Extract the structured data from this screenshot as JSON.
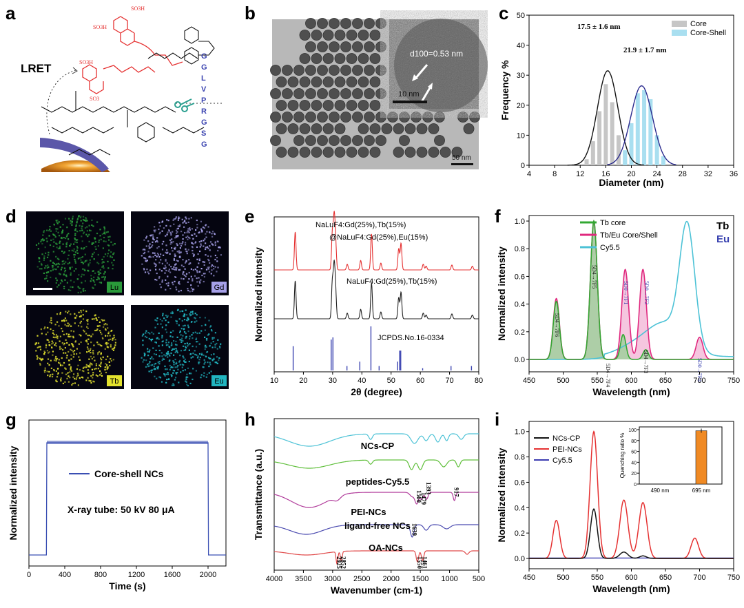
{
  "panels": {
    "a": "a",
    "b": "b",
    "c": "c",
    "d": "d",
    "e": "e",
    "f": "f",
    "g": "g",
    "h": "h",
    "i": "i"
  },
  "panel_a": {
    "lret": "LRET",
    "peptide": [
      "G",
      "G",
      "L",
      "V",
      "P",
      "R",
      "G",
      "S",
      "G"
    ],
    "so3h": "SO3H",
    "so3": "SO3"
  },
  "panel_b": {
    "spacing_label": "d100=0.53 nm",
    "inset_scale": "10 nm",
    "scale": "50 nm"
  },
  "panel_d": {
    "labels": [
      "Lu",
      "Gd",
      "Tb",
      "Eu"
    ],
    "colors": [
      "#2a9a3a",
      "#a6a0e8",
      "#e3e22e",
      "#21b5c0"
    ]
  },
  "panel_e": {
    "labels": [
      "NaLuF4:Gd(25%),Tb(15%)",
      "@NaLuF4:Gd(25%),Eu(15%)",
      "NaLuF4:Gd(25%),Tb(15%)",
      "JCPDS.No.16-0334"
    ]
  },
  "panel_f": {
    "tb": "Tb",
    "eu": "Eu"
  },
  "panel_g": {
    "series": "Core-shell NCs",
    "note": "X-ray tube: 50 kV 80 μA"
  },
  "panel_h": {
    "labels": [
      "NCs-CP",
      "peptides-Cy5.5",
      "PEI-NCs",
      "ligand-free NCs",
      "OA-NCs"
    ],
    "peaks": [
      "1560",
      "1479",
      "1393",
      "917",
      "1639",
      "2925",
      "2852",
      "1550",
      "1461"
    ]
  },
  "panel_i": {
    "inset": {
      "ylabel": "Quenching ratio %",
      "cats": [
        "490 nm",
        "695 nm"
      ],
      "values": [
        0,
        98
      ],
      "yticks": [
        "0",
        "20",
        "40",
        "60",
        "80",
        "100"
      ]
    }
  },
  "chart_data": [
    {
      "type": "bar",
      "panel": "c",
      "xlabel": "Diameter (nm)",
      "ylabel": "Frequency %",
      "xlim": [
        4,
        36
      ],
      "ylim": [
        0,
        50
      ],
      "xticks": [
        "4",
        "8",
        "12",
        "16",
        "20",
        "24",
        "28",
        "32",
        "36"
      ],
      "yticks": [
        "0",
        "10",
        "20",
        "30",
        "40",
        "50"
      ],
      "legend": [
        "Core",
        "Core-Shell"
      ],
      "annotations": [
        "17.5 ± 1.6 nm",
        "21.9 ± 1.7 nm"
      ],
      "series": [
        {
          "name": "Core",
          "color": "#c6c6c6",
          "x": [
            13,
            14,
            15,
            16,
            17,
            18,
            19,
            20
          ],
          "values": [
            2,
            8,
            18,
            27,
            21,
            10,
            4,
            1
          ]
        },
        {
          "name": "Core-Shell",
          "color": "#a9dff0",
          "x": [
            19,
            20,
            21,
            22,
            23,
            24,
            25
          ],
          "values": [
            5,
            14,
            24,
            25,
            22,
            10,
            3
          ]
        }
      ]
    },
    {
      "type": "line",
      "panel": "e",
      "xlabel": "2θ (degree)",
      "ylabel": "Normalized intensity",
      "xlim": [
        10,
        80
      ],
      "xticks": [
        "10",
        "20",
        "30",
        "40",
        "50",
        "60",
        "70",
        "80"
      ],
      "series": [
        {
          "name": "NaLuF4:Gd(25%),Tb(15%)@NaLuF4:Gd(25%),Eu(15%)",
          "color": "#e53030"
        },
        {
          "name": "NaLuF4:Gd(25%),Tb(15%)",
          "color": "#222222"
        },
        {
          "name": "JCPDS.No.16-0334",
          "color": "#3a43b0"
        }
      ]
    },
    {
      "type": "line",
      "panel": "f",
      "xlabel": "Wavelength (nm)",
      "ylabel": "Normalized intensity",
      "xlim": [
        450,
        750
      ],
      "ylim": [
        0,
        1.0
      ],
      "xticks": [
        "450",
        "500",
        "550",
        "600",
        "650",
        "700",
        "750"
      ],
      "yticks": [
        "0.0",
        "0.2",
        "0.4",
        "0.6",
        "0.8",
        "1.0"
      ],
      "series": [
        {
          "name": "Tb core",
          "color": "#33a833"
        },
        {
          "name": "Tb/Eu Core/Shell",
          "color": "#e0287e"
        },
        {
          "name": "Cy5.5",
          "color": "#4cc2d6"
        }
      ],
      "annotations": [
        "5D4→7F6",
        "5D4→7F5",
        "5D0→7F1",
        "5D0→7F2",
        "5D0→7F4",
        "5D4→7F4",
        "5D4→7F3"
      ]
    },
    {
      "type": "line",
      "panel": "g",
      "xlabel": "Time (s)",
      "ylabel": "Normalized intensity",
      "xlim": [
        0,
        2200
      ],
      "xticks": [
        "0",
        "400",
        "800",
        "1200",
        "1600",
        "2000"
      ],
      "series": [
        {
          "name": "Core-shell NCs",
          "color": "#3a4fb3"
        }
      ]
    },
    {
      "type": "line",
      "panel": "h",
      "xlabel": "Wavenumber (cm-1)",
      "ylabel": "Transmittance (a.u.)",
      "xlim": [
        4000,
        500
      ],
      "xticks": [
        "4000",
        "3500",
        "3000",
        "2500",
        "2000",
        "1500",
        "1000",
        "500"
      ],
      "series": [
        {
          "name": "NCs-CP",
          "color": "#4cc2d6"
        },
        {
          "name": "peptides-Cy5.5",
          "color": "#5fbf3a"
        },
        {
          "name": "PEI-NCs",
          "color": "#b03a9a"
        },
        {
          "name": "ligand-free NCs",
          "color": "#4b4bb0"
        },
        {
          "name": "OA-NCs",
          "color": "#e04a4a"
        }
      ]
    },
    {
      "type": "line",
      "panel": "i",
      "xlabel": "Wavelength (nm)",
      "ylabel": "Normalized intensity",
      "xlim": [
        450,
        750
      ],
      "ylim": [
        0,
        1.0
      ],
      "xticks": [
        "450",
        "500",
        "550",
        "600",
        "650",
        "700",
        "750"
      ],
      "yticks": [
        "0.0",
        "0.2",
        "0.4",
        "0.6",
        "0.8",
        "1.0"
      ],
      "series": [
        {
          "name": "NCs-CP",
          "color": "#111111"
        },
        {
          "name": "PEI-NCs",
          "color": "#e53030"
        },
        {
          "name": "Cy5.5",
          "color": "#3a3ab0"
        }
      ]
    }
  ]
}
